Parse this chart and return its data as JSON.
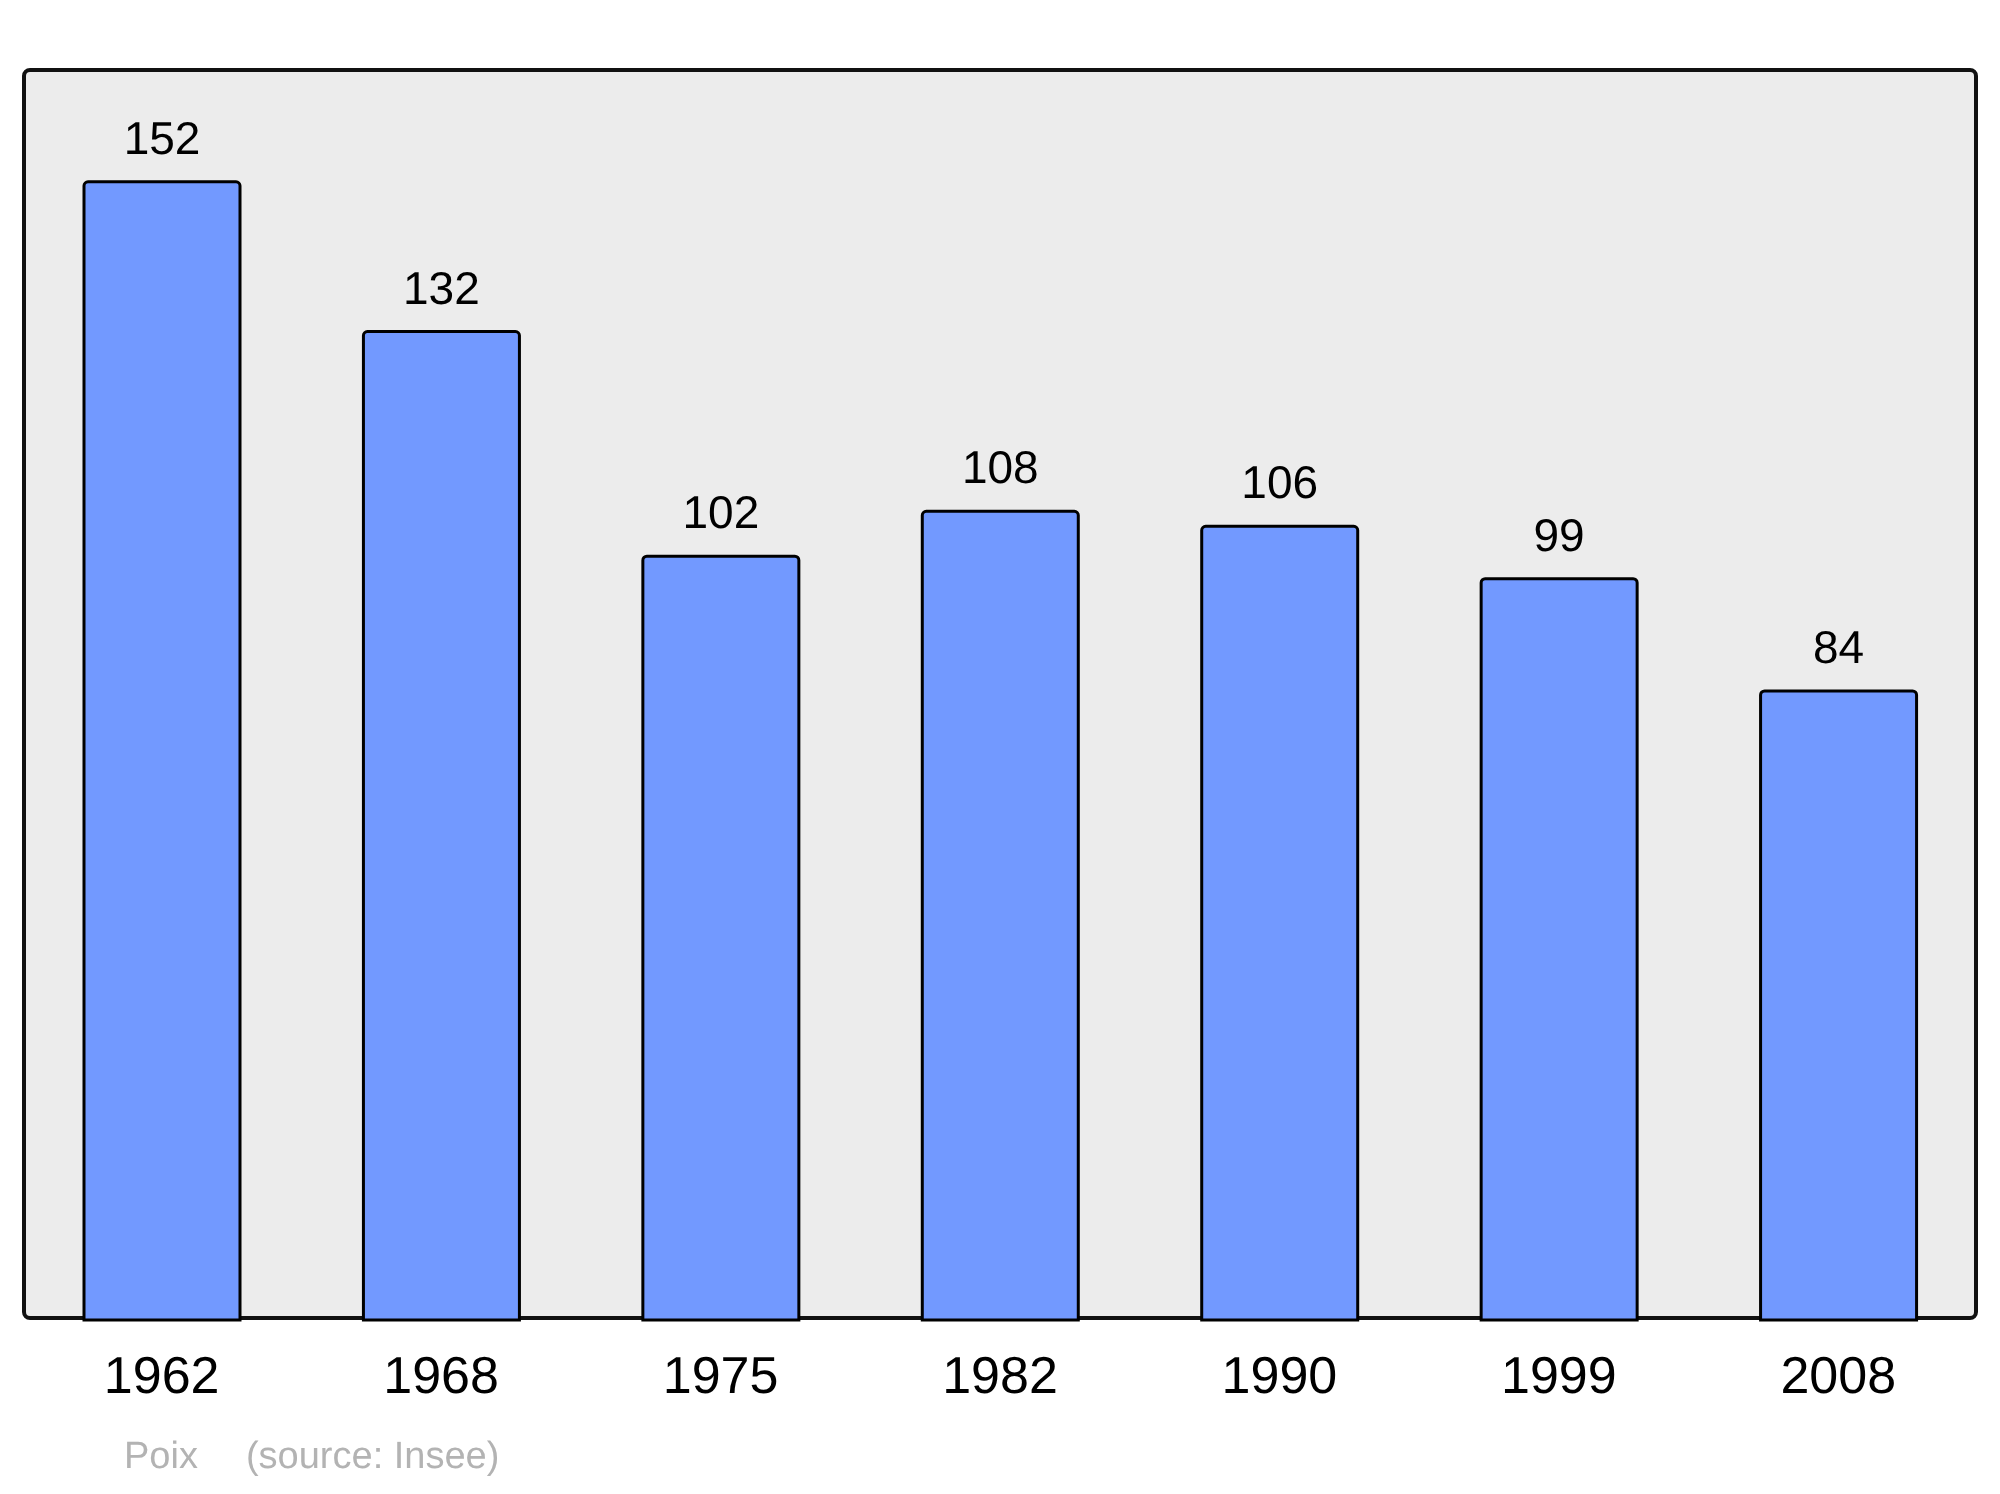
{
  "chart_data": {
    "type": "bar",
    "categories": [
      "1962",
      "1968",
      "1975",
      "1982",
      "1990",
      "1999",
      "2008"
    ],
    "values": [
      152,
      132,
      102,
      108,
      106,
      99,
      84
    ],
    "color": "#7299ff",
    "data_labels": true,
    "tick_labels": "x",
    "annotations": [
      "Poix",
      "(source: Insee)"
    ]
  }
}
